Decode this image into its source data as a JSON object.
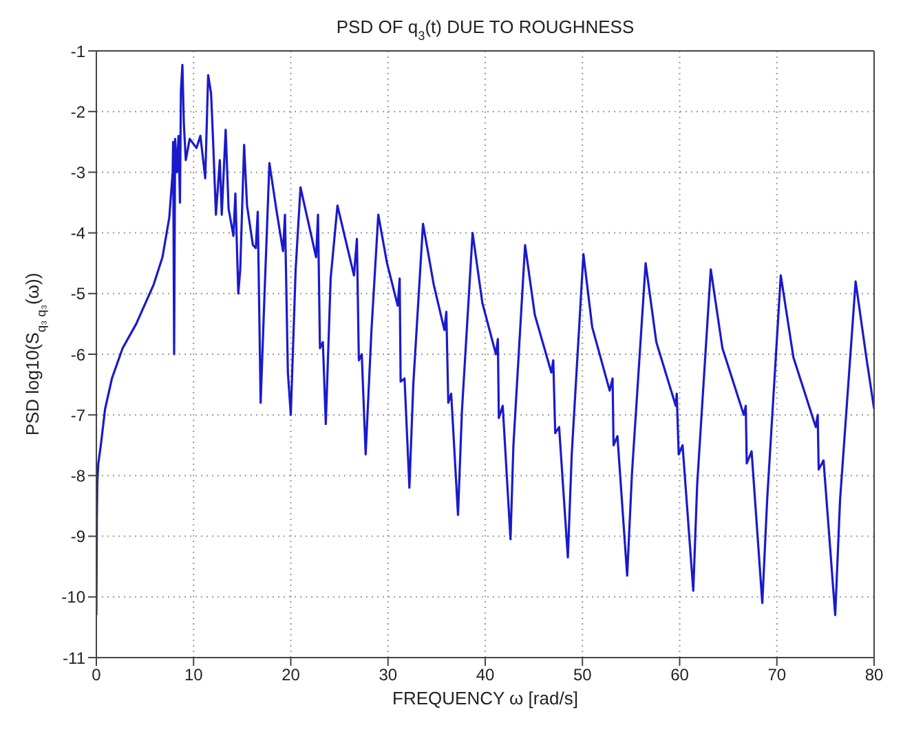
{
  "chart_data": {
    "type": "line",
    "title": "PSD OF q$_{3}$(t) DUE TO ROUGHNESS",
    "xlabel": "FREQUENCY ω [rad/s]",
    "ylabel": "PSD log10(S$_{q₃ q₃}$(ω))",
    "xlim": [
      0,
      80
    ],
    "xticks": [
      0,
      10,
      20,
      30,
      40,
      50,
      60,
      70,
      80
    ],
    "ylim": [
      -11,
      -1
    ],
    "yticks": [
      -11,
      -10,
      -9,
      -8,
      -7,
      -6,
      -5,
      -4,
      -3,
      -2,
      -1
    ],
    "grid": true,
    "legend": false,
    "marker": "none",
    "line_style": "solid",
    "series": [
      {
        "color": "#1a1acc",
        "x": [
          0,
          0.05,
          0.1,
          0.2,
          0.46,
          0.9,
          1.6,
          2.7,
          4.1,
          5.9,
          6.8,
          7.5,
          7.85,
          7.9,
          8.0,
          8.1,
          8.3,
          8.45,
          8.6,
          8.7,
          8.85,
          9.0,
          9.2,
          9.6,
          10.3,
          10.7,
          11.2,
          11.5,
          11.8,
          12.0,
          12.3,
          12.7,
          12.9,
          13.3,
          13.6,
          14.1,
          14.3,
          14.6,
          14.8,
          15.2,
          15.5,
          16.1,
          16.4,
          16.6,
          16.9,
          17.3,
          17.8,
          18.5,
          19.2,
          19.4,
          19.7,
          20.0,
          20.5,
          21.0,
          21.7,
          22.6,
          22.8,
          23.0,
          23.3,
          23.6,
          24.1,
          24.8,
          26.5,
          26.8,
          27.0,
          27.3,
          27.7,
          28.3,
          29.0,
          29.9,
          31.0,
          31.2,
          31.3,
          31.7,
          32.2,
          32.6,
          33.6,
          34.7,
          35.8,
          36.0,
          36.2,
          36.5,
          37.2,
          37.6,
          38.7,
          39.7,
          41.1,
          41.3,
          41.4,
          41.8,
          42.6,
          42.9,
          44.1,
          45.1,
          46.8,
          47.0,
          47.2,
          47.6,
          48.5,
          48.9,
          50.1,
          51.0,
          52.8,
          53.1,
          53.2,
          53.6,
          54.6,
          55.1,
          56.5,
          57.6,
          59.6,
          59.7,
          59.9,
          60.3,
          61.4,
          61.8,
          63.2,
          64.4,
          66.6,
          66.8,
          66.9,
          67.4,
          68.5,
          69.0,
          70.4,
          71.7,
          74.0,
          74.2,
          74.3,
          74.8,
          76.0,
          76.5,
          78.1,
          79.2,
          80
        ],
        "values": [
          -10.3,
          -8.7,
          -8.1,
          -7.8,
          -7.5,
          -6.9,
          -6.4,
          -5.9,
          -5.5,
          -4.85,
          -4.4,
          -3.75,
          -3.0,
          -2.5,
          -6.0,
          -2.45,
          -3.0,
          -2.4,
          -3.5,
          -1.65,
          -1.23,
          -2.2,
          -2.8,
          -2.45,
          -2.6,
          -2.4,
          -3.1,
          -1.4,
          -1.7,
          -2.45,
          -3.7,
          -2.8,
          -3.7,
          -2.3,
          -3.6,
          -4.05,
          -3.35,
          -5.0,
          -4.6,
          -2.55,
          -3.55,
          -4.2,
          -4.25,
          -3.65,
          -6.8,
          -5.0,
          -2.85,
          -3.6,
          -4.3,
          -3.7,
          -6.3,
          -7.0,
          -4.6,
          -3.25,
          -3.75,
          -4.4,
          -3.7,
          -5.9,
          -5.8,
          -7.15,
          -4.75,
          -3.55,
          -4.7,
          -4.1,
          -6.1,
          -6.0,
          -7.65,
          -5.6,
          -3.7,
          -4.5,
          -5.2,
          -4.75,
          -6.45,
          -6.4,
          -8.2,
          -6.5,
          -3.85,
          -4.85,
          -5.6,
          -5.3,
          -6.8,
          -6.65,
          -8.65,
          -6.95,
          -4.0,
          -5.15,
          -6.0,
          -5.75,
          -7.05,
          -6.85,
          -9.05,
          -7.5,
          -4.2,
          -5.35,
          -6.3,
          -6.1,
          -7.3,
          -7.2,
          -9.35,
          -7.65,
          -4.35,
          -5.55,
          -6.6,
          -6.4,
          -7.5,
          -7.35,
          -9.65,
          -7.95,
          -4.5,
          -5.8,
          -6.85,
          -6.65,
          -7.65,
          -7.5,
          -9.9,
          -8.15,
          -4.6,
          -5.9,
          -7.0,
          -6.85,
          -7.8,
          -7.6,
          -10.1,
          -8.4,
          -4.7,
          -6.05,
          -7.2,
          -7.0,
          -7.9,
          -7.75,
          -10.3,
          -8.4,
          -4.8,
          -6.05,
          -6.9
        ]
      }
    ]
  }
}
